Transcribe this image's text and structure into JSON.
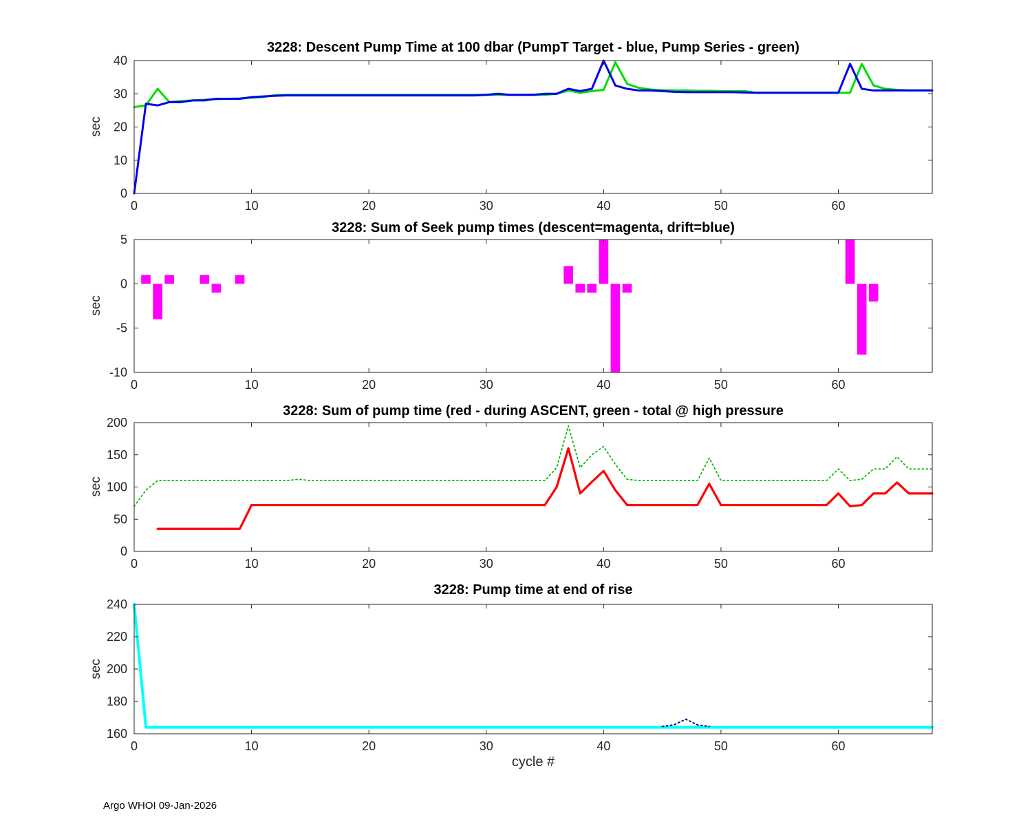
{
  "xlabel": "cycle #",
  "footer": "Argo WHOI 09-Jan-2026",
  "chart_data": [
    {
      "type": "line",
      "title": "3228: Descent Pump Time at 100 dbar (PumpT Target - blue, Pump Series - green)",
      "ylabel": "sec",
      "xlim": [
        0,
        68
      ],
      "ylim": [
        0,
        40
      ],
      "xticks": [
        0,
        10,
        20,
        30,
        40,
        50,
        60
      ],
      "yticks": [
        0,
        10,
        20,
        30,
        40
      ],
      "grid": false,
      "series": [
        {
          "name": "Pump Series",
          "color": "#00dd00",
          "width": 3,
          "style": "solid",
          "x_start": 0,
          "y": [
            26,
            26.5,
            31.5,
            27.5,
            27.8,
            28,
            28.2,
            28.4,
            28.5,
            28.6,
            28.8,
            29,
            29.6,
            29.7,
            29.7,
            29.7,
            29.7,
            29.7,
            29.7,
            29.7,
            29.7,
            29.7,
            29.7,
            29.7,
            29.7,
            29.7,
            29.7,
            29.7,
            29.7,
            29.7,
            29.7,
            29.7,
            29.7,
            29.7,
            29.7,
            29.7,
            30,
            31,
            30.3,
            30.8,
            31.2,
            39.5,
            33,
            31.8,
            31.3,
            31.1,
            31,
            31,
            30.9,
            30.9,
            30.8,
            30.8,
            30.8,
            30.3,
            30.3,
            30.3,
            30.3,
            30.3,
            30.3,
            30.3,
            30.3,
            30.3,
            39,
            32.5,
            31.5,
            31.2,
            31,
            31,
            31
          ]
        },
        {
          "name": "PumpT Target",
          "color": "#0000ee",
          "width": 3,
          "style": "solid",
          "x_start": 0,
          "y": [
            0,
            27,
            26.5,
            27.5,
            27.5,
            28,
            28,
            28.5,
            28.5,
            28.5,
            29,
            29.2,
            29.4,
            29.5,
            29.5,
            29.5,
            29.5,
            29.5,
            29.5,
            29.5,
            29.5,
            29.5,
            29.5,
            29.5,
            29.5,
            29.5,
            29.5,
            29.5,
            29.5,
            29.5,
            29.7,
            30,
            29.7,
            29.7,
            29.7,
            30,
            30,
            31.5,
            30.8,
            31.5,
            40,
            32.5,
            31.5,
            31,
            31,
            30.8,
            30.6,
            30.5,
            30.5,
            30.5,
            30.5,
            30.5,
            30.4,
            30.3,
            30.3,
            30.3,
            30.3,
            30.3,
            30.3,
            30.3,
            30.3,
            39,
            31.5,
            31,
            31,
            31,
            31,
            31,
            31
          ]
        }
      ]
    },
    {
      "type": "bar",
      "title": "3228: Sum of Seek pump times (descent=magenta, drift=blue)",
      "ylabel": "sec",
      "xlim": [
        0,
        68
      ],
      "ylim": [
        -10,
        5
      ],
      "xticks": [
        0,
        10,
        20,
        30,
        40,
        50,
        60
      ],
      "yticks": [
        -10,
        -5,
        0,
        5
      ],
      "grid": false,
      "bars": [
        {
          "name": "descent",
          "color": "#ff00ff",
          "width": 0.8,
          "points": [
            [
              1,
              1
            ],
            [
              2,
              -4
            ],
            [
              3,
              1
            ],
            [
              6,
              1
            ],
            [
              7,
              -1
            ],
            [
              9,
              1
            ],
            [
              37,
              2
            ],
            [
              38,
              -1
            ],
            [
              39,
              -1
            ],
            [
              40,
              6
            ],
            [
              41,
              -10
            ],
            [
              42,
              -1
            ],
            [
              61,
              6
            ],
            [
              62,
              -8
            ],
            [
              63,
              -2
            ]
          ]
        },
        {
          "name": "drift",
          "color": "#0000ee",
          "width": 0.8,
          "points": []
        }
      ]
    },
    {
      "type": "line",
      "title": "3228: Sum of pump time (red - during ASCENT, green - total @ high pressure",
      "ylabel": "sec",
      "xlim": [
        0,
        68
      ],
      "ylim": [
        0,
        200
      ],
      "xticks": [
        0,
        10,
        20,
        30,
        40,
        50,
        60
      ],
      "yticks": [
        0,
        50,
        100,
        150,
        200
      ],
      "grid": false,
      "series": [
        {
          "name": "total @ high pressure",
          "color": "#00bb00",
          "width": 1.8,
          "style": "dotted",
          "x_start": 0,
          "y": [
            70,
            95,
            110,
            110,
            110,
            110,
            110,
            110,
            110,
            110,
            110,
            110,
            110,
            110,
            112,
            110,
            110,
            110,
            110,
            110,
            110,
            110,
            110,
            110,
            110,
            110,
            110,
            110,
            110,
            110,
            110,
            110,
            110,
            110,
            110,
            110,
            130,
            195,
            130,
            150,
            163,
            135,
            112,
            110,
            110,
            110,
            110,
            110,
            110,
            145,
            110,
            110,
            110,
            110,
            110,
            110,
            110,
            110,
            110,
            110,
            128,
            110,
            112,
            128,
            128,
            147,
            128,
            128,
            128
          ]
        },
        {
          "name": "during ASCENT",
          "color": "#ff0000",
          "width": 3.2,
          "style": "solid",
          "x_start": 2,
          "y": [
            35,
            35,
            35,
            35,
            35,
            35,
            35,
            35,
            72,
            72,
            72,
            72,
            72,
            72,
            72,
            72,
            72,
            72,
            72,
            72,
            72,
            72,
            72,
            72,
            72,
            72,
            72,
            72,
            72,
            72,
            72,
            72,
            72,
            72,
            100,
            160,
            90,
            108,
            125,
            95,
            72,
            72,
            72,
            72,
            72,
            72,
            72,
            105,
            72,
            72,
            72,
            72,
            72,
            72,
            72,
            72,
            72,
            72,
            90,
            70,
            72,
            90,
            90,
            107,
            90,
            90,
            90
          ]
        }
      ]
    },
    {
      "type": "line",
      "title": "3228: Pump time at end of rise",
      "ylabel": "sec",
      "xlim": [
        0,
        68
      ],
      "ylim": [
        160,
        240
      ],
      "xticks": [
        0,
        10,
        20,
        30,
        40,
        50,
        60
      ],
      "yticks": [
        160,
        180,
        200,
        220,
        240
      ],
      "grid": false,
      "series": [
        {
          "name": "pump time at end of rise",
          "color": "#00ffff",
          "width": 4,
          "style": "solid",
          "x_start": 0,
          "y": [
            240,
            164,
            164,
            164,
            164,
            164,
            164,
            164,
            164,
            164,
            164,
            164,
            164,
            164,
            164,
            164,
            164,
            164,
            164,
            164,
            164,
            164,
            164,
            164,
            164,
            164,
            164,
            164,
            164,
            164,
            164,
            164,
            164,
            164,
            164,
            164,
            164,
            164,
            164,
            164,
            164,
            164,
            164,
            164,
            164,
            164,
            164,
            164,
            164,
            164,
            164,
            164,
            164,
            164,
            164,
            164,
            164,
            164,
            164,
            164,
            164,
            164,
            164,
            164,
            164,
            164,
            164,
            164,
            164
          ]
        },
        {
          "name": "dotted bump",
          "color": "#000099",
          "width": 2,
          "style": "dotted",
          "x_start": 45,
          "y": [
            164.5,
            165.5,
            169,
            165.5,
            164.5
          ]
        }
      ]
    }
  ]
}
